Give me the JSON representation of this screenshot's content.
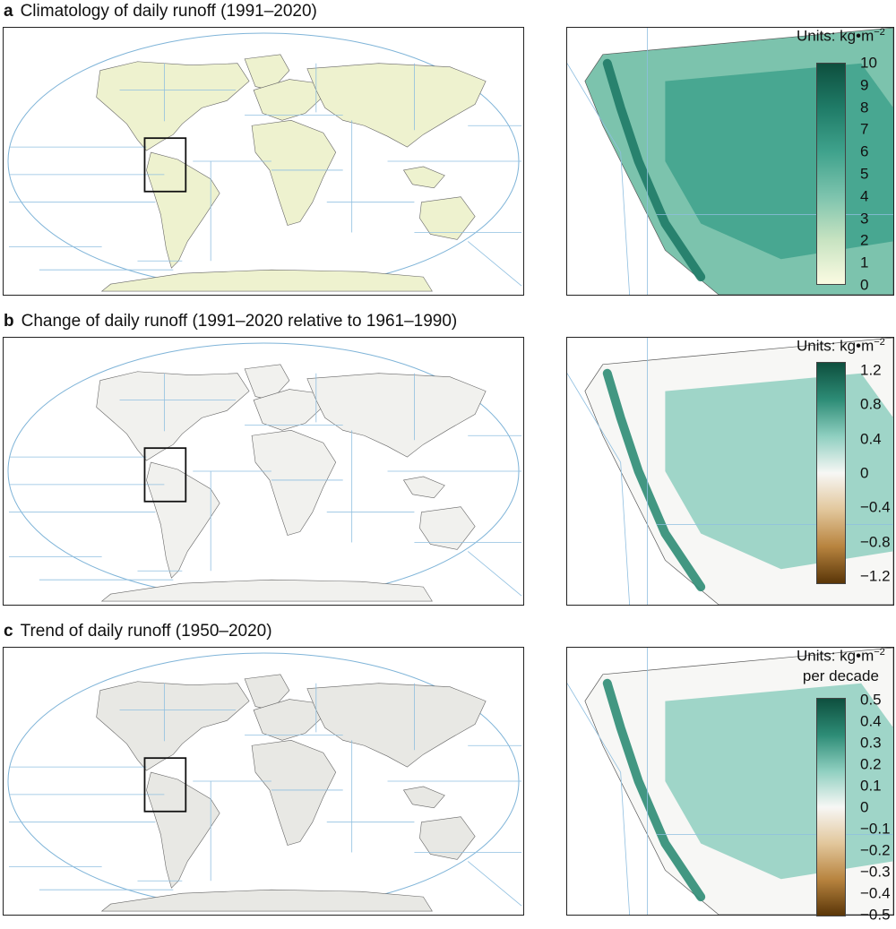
{
  "panels": [
    {
      "letter": "a",
      "title": "Climatology of daily runoff (1991–2020)",
      "units_prefix": "Units: kg•m",
      "units_exp": "−2",
      "units_suffix": "",
      "colorbar": {
        "ticks": [
          "10",
          "9",
          "8",
          "7",
          "6",
          "5",
          "4",
          "3",
          "2",
          "1",
          "0"
        ],
        "colors": [
          "#0e4f3e",
          "#1f7b67",
          "#3fa28c",
          "#7cc3ad",
          "#c7e3c1",
          "#fbfbe2"
        ]
      },
      "land_color": "#eef2cf"
    },
    {
      "letter": "b",
      "title": "Change of daily runoff (1991–2020 relative to 1961–1990)",
      "units_prefix": "Units: kg•m",
      "units_exp": "−2",
      "units_suffix": "",
      "colorbar": {
        "ticks": [
          "1.2",
          "0.8",
          "0.4",
          "0",
          "−0.4",
          "−0.8",
          "−1.2"
        ],
        "colors": [
          "#0e4f3e",
          "#2d8c76",
          "#8fcfc0",
          "#f7f7f5",
          "#e2c79c",
          "#b8843f",
          "#5a3608"
        ]
      },
      "land_color": "#f1f1ee"
    },
    {
      "letter": "c",
      "title": "Trend of daily runoff (1950–2020)",
      "units_prefix": "Units: kg•m",
      "units_exp": "−2",
      "units_suffix": "per decade",
      "colorbar": {
        "ticks": [
          "0.5",
          "0.4",
          "0.3",
          "0.2",
          "0.1",
          "0",
          "−0.1",
          "−0.2",
          "−0.3",
          "−0.4",
          "−0.5"
        ],
        "colors": [
          "#0e4f3e",
          "#2d8c76",
          "#8fcfc0",
          "#f7f7f5",
          "#e2c79c",
          "#b8843f",
          "#5a3608"
        ]
      },
      "land_color": "#e8e8e4"
    }
  ]
}
